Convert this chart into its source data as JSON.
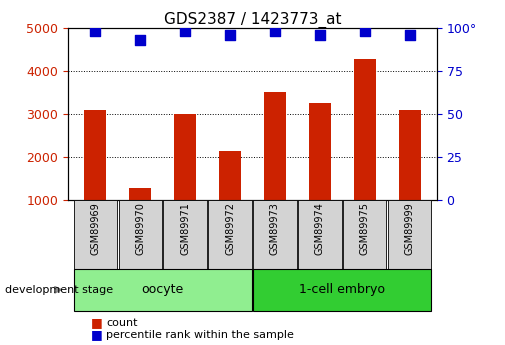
{
  "title": "GDS2387 / 1423773_at",
  "samples": [
    "GSM89969",
    "GSM89970",
    "GSM89971",
    "GSM89972",
    "GSM89973",
    "GSM89974",
    "GSM89975",
    "GSM89999"
  ],
  "counts": [
    3100,
    1280,
    3000,
    2150,
    3500,
    3250,
    4280,
    3100
  ],
  "percentile_ranks": [
    98,
    93,
    98,
    96,
    98,
    96,
    98,
    96
  ],
  "groups": [
    {
      "label": "oocyte",
      "n_samples": 4,
      "color": "#90EE90"
    },
    {
      "label": "1-cell embryo",
      "n_samples": 4,
      "color": "#32CD32"
    }
  ],
  "ylim_left": [
    1000,
    5000
  ],
  "ylim_right": [
    0,
    100
  ],
  "yticks_left": [
    1000,
    2000,
    3000,
    4000,
    5000
  ],
  "yticks_right": [
    0,
    25,
    50,
    75,
    100
  ],
  "bar_color": "#CC2200",
  "dot_color": "#0000CC",
  "grid_color": "#000000",
  "background_color": "#ffffff",
  "tick_label_color_left": "#CC2200",
  "tick_label_color_right": "#0000CC",
  "dev_stage_label": "development stage",
  "legend_count_label": "count",
  "legend_percentile_label": "percentile rank within the sample",
  "bar_width": 0.5,
  "dot_size": 55,
  "sample_box_color": "#D3D3D3",
  "oocyte_color": "#90EE90",
  "embryo_color": "#32CD32"
}
